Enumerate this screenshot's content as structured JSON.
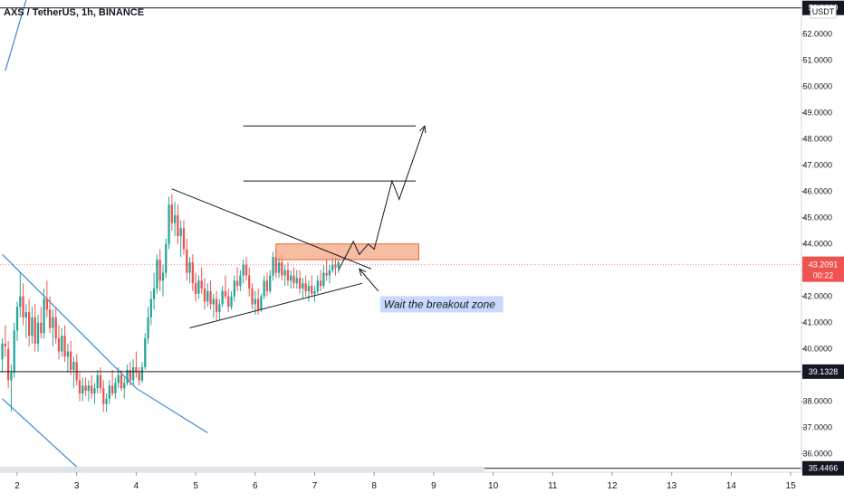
{
  "header": {
    "symbol_title": "AXS / TetherUS, 1h, BINANCE"
  },
  "colors": {
    "bull": "#26a69a",
    "bear": "#ef5350",
    "channel_line": "#3d86d6",
    "drawing_line": "#131722",
    "resistance_fill": "#f4a582",
    "resistance_stroke": "#e06a3a",
    "annotation_bg": "#c9d9fb",
    "price_badge_bg": "#ef5350",
    "level_badge_bg": "#131722",
    "axis_badge_bg": "#131722"
  },
  "chart_data": {
    "type": "candlestick",
    "currency_label": "USDT",
    "x_ticks": [
      "2",
      "3",
      "4",
      "5",
      "6",
      "7",
      "8",
      "9",
      "10",
      "11",
      "12",
      "13",
      "14",
      "15"
    ],
    "x_range": [
      1.75,
      15.1
    ],
    "y_range": [
      35.3,
      53.3
    ],
    "y_ticks": [
      "36.0000",
      "37.0000",
      "38.0000",
      "39.0000",
      "40.0000",
      "41.0000",
      "42.0000",
      "43.0000",
      "44.0000",
      "45.0000",
      "46.0000",
      "47.0000",
      "48.0000",
      "49.0000",
      "50.0000",
      "51.0000",
      "52.0000",
      "53.0000"
    ],
    "y_tick_values": [
      36,
      37,
      38,
      39,
      40,
      41,
      42,
      43,
      44,
      45,
      46,
      47,
      48,
      49,
      50,
      51,
      52,
      53
    ],
    "current_price": {
      "value": 43.2091,
      "label": "43.2091",
      "countdown": "00:22"
    },
    "horizontal_levels": [
      {
        "value": 39.1328,
        "label": "39.1328"
      },
      {
        "value": 35.4466,
        "label": "35.4466"
      },
      {
        "value": 53.0,
        "label": "53.0000"
      }
    ],
    "candles_ohlc": [
      [
        1.75,
        39.6,
        40.4,
        39.1,
        40.2
      ],
      [
        1.8,
        40.2,
        40.9,
        39.7,
        40.1
      ],
      [
        1.85,
        40.0,
        40.3,
        38.5,
        38.8
      ],
      [
        1.9,
        38.8,
        39.4,
        37.6,
        39.1
      ],
      [
        1.95,
        39.1,
        41.0,
        38.9,
        40.7
      ],
      [
        2.0,
        40.7,
        41.8,
        40.3,
        41.6
      ],
      [
        2.05,
        41.6,
        42.9,
        41.2,
        42.0
      ],
      [
        2.1,
        42.0,
        42.5,
        40.9,
        41.2
      ],
      [
        2.15,
        41.2,
        41.7,
        40.4,
        41.4
      ],
      [
        2.2,
        41.4,
        41.9,
        40.1,
        40.5
      ],
      [
        2.25,
        40.5,
        41.6,
        40.2,
        41.2
      ],
      [
        2.3,
        41.2,
        41.7,
        39.9,
        40.2
      ],
      [
        2.35,
        40.2,
        41.3,
        39.9,
        41.0
      ],
      [
        2.4,
        41.0,
        41.6,
        40.4,
        40.6
      ],
      [
        2.45,
        40.6,
        42.3,
        40.4,
        41.9
      ],
      [
        2.5,
        41.9,
        42.6,
        41.2,
        41.5
      ],
      [
        2.55,
        41.5,
        42.0,
        40.6,
        40.8
      ],
      [
        2.6,
        40.8,
        41.5,
        40.1,
        41.2
      ],
      [
        2.65,
        41.2,
        41.6,
        40.2,
        40.4
      ],
      [
        2.7,
        40.4,
        40.9,
        39.6,
        39.9
      ],
      [
        2.75,
        39.9,
        40.8,
        39.7,
        40.5
      ],
      [
        2.8,
        40.5,
        40.9,
        39.5,
        39.7
      ],
      [
        2.85,
        39.7,
        40.2,
        39.1,
        39.9
      ],
      [
        2.9,
        39.9,
        40.3,
        39.0,
        39.2
      ],
      [
        2.95,
        39.2,
        39.7,
        38.5,
        39.5
      ],
      [
        3.0,
        39.5,
        39.8,
        38.6,
        38.8
      ],
      [
        3.05,
        38.8,
        39.1,
        38.0,
        38.3
      ],
      [
        3.1,
        38.3,
        38.9,
        38.0,
        38.6
      ],
      [
        3.15,
        38.6,
        38.9,
        38.2,
        38.4
      ],
      [
        3.2,
        38.4,
        38.8,
        38.0,
        38.6
      ],
      [
        3.25,
        38.6,
        39.0,
        38.1,
        38.3
      ],
      [
        3.3,
        38.3,
        38.7,
        37.9,
        38.5
      ],
      [
        3.35,
        38.5,
        39.2,
        38.3,
        39.0
      ],
      [
        3.4,
        39.0,
        39.3,
        38.3,
        38.5
      ],
      [
        3.45,
        38.5,
        38.8,
        37.6,
        37.9
      ],
      [
        3.5,
        37.9,
        38.3,
        37.6,
        38.1
      ],
      [
        3.55,
        38.1,
        38.8,
        37.9,
        38.6
      ],
      [
        3.6,
        38.6,
        39.2,
        38.2,
        38.3
      ],
      [
        3.65,
        38.3,
        38.9,
        38.1,
        38.7
      ],
      [
        3.7,
        38.7,
        39.3,
        38.5,
        39.0
      ],
      [
        3.75,
        39.0,
        39.2,
        38.4,
        38.5
      ],
      [
        3.8,
        38.5,
        38.9,
        38.1,
        38.7
      ],
      [
        3.85,
        38.7,
        39.4,
        38.6,
        39.2
      ],
      [
        3.9,
        39.2,
        39.5,
        38.6,
        38.8
      ],
      [
        3.95,
        38.8,
        39.6,
        38.6,
        39.3
      ],
      [
        4.0,
        39.3,
        39.9,
        38.9,
        39.1
      ],
      [
        4.05,
        39.1,
        39.3,
        38.6,
        38.8
      ],
      [
        4.1,
        38.8,
        39.5,
        38.7,
        39.3
      ],
      [
        4.15,
        39.3,
        40.6,
        39.2,
        40.4
      ],
      [
        4.2,
        40.4,
        41.6,
        40.2,
        41.2
      ],
      [
        4.25,
        41.2,
        42.2,
        40.9,
        41.9
      ],
      [
        4.3,
        41.9,
        42.9,
        41.5,
        42.3
      ],
      [
        4.35,
        42.3,
        43.6,
        42.1,
        43.4
      ],
      [
        4.4,
        43.4,
        43.8,
        42.2,
        42.6
      ],
      [
        4.45,
        42.6,
        43.2,
        42.0,
        42.9
      ],
      [
        4.5,
        42.9,
        44.2,
        42.7,
        44.0
      ],
      [
        4.55,
        44.0,
        45.8,
        43.8,
        45.5
      ],
      [
        4.6,
        45.5,
        45.9,
        44.5,
        44.8
      ],
      [
        4.65,
        44.8,
        45.6,
        44.3,
        45.1
      ],
      [
        4.7,
        45.1,
        45.5,
        44.0,
        44.3
      ],
      [
        4.75,
        44.3,
        44.9,
        43.5,
        44.6
      ],
      [
        4.8,
        44.6,
        44.9,
        43.6,
        43.8
      ],
      [
        4.85,
        43.8,
        44.2,
        42.6,
        42.9
      ],
      [
        4.9,
        42.9,
        43.5,
        42.5,
        43.3
      ],
      [
        4.95,
        43.3,
        43.6,
        42.2,
        42.5
      ],
      [
        5.0,
        42.5,
        42.9,
        41.8,
        42.1
      ],
      [
        5.05,
        42.1,
        42.8,
        41.9,
        42.6
      ],
      [
        5.1,
        42.6,
        43.1,
        42.1,
        42.3
      ],
      [
        5.15,
        42.3,
        42.7,
        41.5,
        41.8
      ],
      [
        5.2,
        41.8,
        42.5,
        41.6,
        42.2
      ],
      [
        5.25,
        42.2,
        42.6,
        41.5,
        41.7
      ],
      [
        5.3,
        41.7,
        42.1,
        41.2,
        41.9
      ],
      [
        5.35,
        41.9,
        42.2,
        41.1,
        41.4
      ],
      [
        5.4,
        41.4,
        41.9,
        41.1,
        41.7
      ],
      [
        5.45,
        41.7,
        42.4,
        41.6,
        42.2
      ],
      [
        5.5,
        42.2,
        42.8,
        41.9,
        42.0
      ],
      [
        5.55,
        42.0,
        42.3,
        41.4,
        41.6
      ],
      [
        5.6,
        41.6,
        42.2,
        41.5,
        42.0
      ],
      [
        5.65,
        42.0,
        42.8,
        41.8,
        42.6
      ],
      [
        5.7,
        42.6,
        43.1,
        42.2,
        42.4
      ],
      [
        5.75,
        42.4,
        43.0,
        42.2,
        42.8
      ],
      [
        5.8,
        42.8,
        43.4,
        42.5,
        43.2
      ],
      [
        5.85,
        43.2,
        43.5,
        42.6,
        42.8
      ],
      [
        5.9,
        42.8,
        43.1,
        42.0,
        42.3
      ],
      [
        5.95,
        42.3,
        42.5,
        41.5,
        41.7
      ],
      [
        6.0,
        41.7,
        42.2,
        41.3,
        41.9
      ],
      [
        6.05,
        41.9,
        42.3,
        41.3,
        41.5
      ],
      [
        6.1,
        41.5,
        42.1,
        41.4,
        42.0
      ],
      [
        6.15,
        42.0,
        42.8,
        41.9,
        42.6
      ],
      [
        6.2,
        42.6,
        42.9,
        42.0,
        42.2
      ],
      [
        6.25,
        42.2,
        43.0,
        42.1,
        42.8
      ],
      [
        6.3,
        42.8,
        43.7,
        42.6,
        43.5
      ],
      [
        6.35,
        43.5,
        43.8,
        42.7,
        42.9
      ],
      [
        6.4,
        42.9,
        43.5,
        42.7,
        43.3
      ],
      [
        6.45,
        43.3,
        43.6,
        42.6,
        42.8
      ],
      [
        6.5,
        42.8,
        43.2,
        42.4,
        43.0
      ],
      [
        6.55,
        43.0,
        43.3,
        42.4,
        42.6
      ],
      [
        6.6,
        42.6,
        43.0,
        42.3,
        42.8
      ],
      [
        6.65,
        42.8,
        43.1,
        42.3,
        42.5
      ],
      [
        6.7,
        42.5,
        43.0,
        42.3,
        42.7
      ],
      [
        6.75,
        42.7,
        43.0,
        42.1,
        42.3
      ],
      [
        6.8,
        42.3,
        42.7,
        41.9,
        42.5
      ],
      [
        6.85,
        42.5,
        42.8,
        42.0,
        42.2
      ],
      [
        6.9,
        42.2,
        42.6,
        41.8,
        42.4
      ],
      [
        6.95,
        42.4,
        42.8,
        42.0,
        42.1
      ],
      [
        7.0,
        42.1,
        42.4,
        41.8,
        42.2
      ],
      [
        7.05,
        42.2,
        42.8,
        42.1,
        42.6
      ],
      [
        7.1,
        42.6,
        43.0,
        42.2,
        42.4
      ],
      [
        7.15,
        42.4,
        43.2,
        42.3,
        42.9
      ],
      [
        7.2,
        42.9,
        43.4,
        42.6,
        42.8
      ],
      [
        7.25,
        42.8,
        43.2,
        42.5,
        43.0
      ],
      [
        7.3,
        43.0,
        43.6,
        42.9,
        43.2
      ],
      [
        7.35,
        43.2,
        43.5,
        42.8,
        43.1
      ],
      [
        7.4,
        43.1,
        43.6,
        42.9,
        43.3
      ]
    ],
    "triangle_upper": [
      [
        4.6,
        46.1
      ],
      [
        7.95,
        43.05
      ]
    ],
    "triangle_lower": [
      [
        4.9,
        40.8
      ],
      [
        7.8,
        42.5
      ]
    ],
    "channel_upper": [
      [
        1.75,
        43.6
      ],
      [
        4.0,
        38.5
      ],
      [
        5.2,
        36.8
      ]
    ],
    "channel_lower": [
      [
        1.75,
        38.1
      ],
      [
        3.0,
        35.5
      ]
    ],
    "channel_far": [
      [
        1.8,
        50.6
      ],
      [
        2.15,
        53.3
      ]
    ],
    "resistance_zone": {
      "x0": 6.35,
      "x1": 8.75,
      "y0": 43.4,
      "y1": 44.0
    },
    "target_lines": [
      {
        "x0": 5.8,
        "x1": 8.7,
        "value": 48.5
      },
      {
        "x0": 5.8,
        "x1": 8.7,
        "value": 46.4
      }
    ],
    "projection_path": [
      [
        7.4,
        43.0
      ],
      [
        7.65,
        44.1
      ],
      [
        7.75,
        43.6
      ],
      [
        7.9,
        44.0
      ],
      [
        8.0,
        43.8
      ],
      [
        8.3,
        46.4
      ],
      [
        8.42,
        45.7
      ],
      [
        8.85,
        48.5
      ]
    ],
    "annotation": {
      "text": "Wait the breakout zone",
      "x": 8.1,
      "y": 41.7
    },
    "annotation_arrow": [
      [
        8.07,
        42.2
      ],
      [
        7.75,
        43.05
      ]
    ]
  }
}
